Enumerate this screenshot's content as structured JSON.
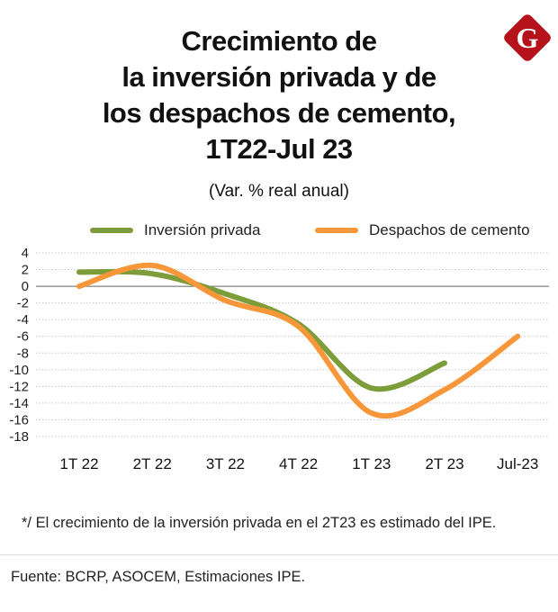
{
  "title_lines": [
    "Crecimiento de",
    "la inversión privada y de",
    "los despachos de cemento,",
    "1T22-Jul 23"
  ],
  "subtitle": "(Var. % real anual)",
  "note": "*/ El crecimiento de la inversión privada en el 2T23 es estimado del IPE.",
  "source": "Fuente: BCRP, ASOCEM, Estimaciones IPE.",
  "logo_letter": "G",
  "colors": {
    "inversion": "#7d9c3a",
    "cemento": "#f7973a",
    "logo": "#b5121b"
  },
  "chart_data": {
    "type": "line",
    "categories": [
      "1T 22",
      "2T 22",
      "3T 22",
      "4T 22",
      "1T 23",
      "2T 23",
      "Jul-23"
    ],
    "yticks": [
      4,
      2,
      0,
      -2,
      -4,
      -6,
      -8,
      -10,
      -12,
      -14,
      -16,
      -18
    ],
    "ylim": [
      -18,
      4
    ],
    "grid": true,
    "legend": "top",
    "series": [
      {
        "name": "Inversión privada",
        "color": "#7d9c3a",
        "values": [
          1.7,
          1.5,
          -0.9,
          -4.5,
          -12.2,
          -9.2,
          null
        ]
      },
      {
        "name": "Despachos de cemento",
        "color": "#f7973a",
        "values": [
          0.0,
          2.5,
          -1.7,
          -4.8,
          -15.2,
          -12.4,
          -6.0
        ]
      }
    ]
  }
}
